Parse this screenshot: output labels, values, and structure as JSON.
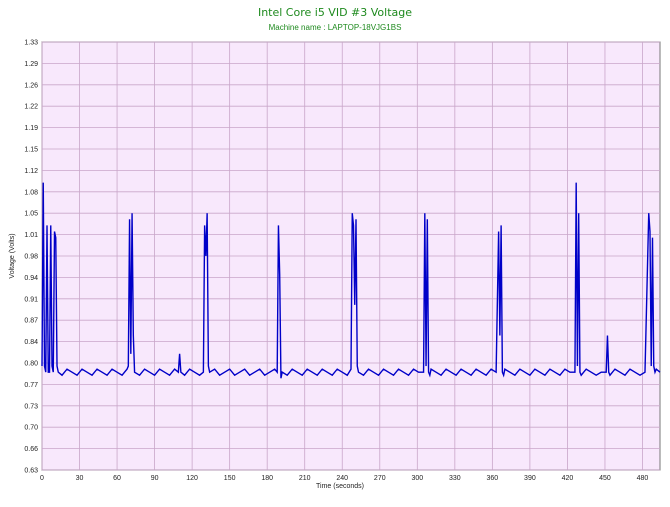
{
  "chart_data": {
    "type": "line",
    "title": "Intel Core i5 VID #3 Voltage",
    "subtitle": "Machine name : LAPTOP-18VJG1BS",
    "xlabel": "Time (seconds)",
    "ylabel": "Voltage (Volts)",
    "color": "#0000c8",
    "grid": true,
    "xlim": [
      0,
      494
    ],
    "ylim": [
      0.63,
      1.33
    ],
    "xticks": [
      0,
      30,
      60,
      90,
      120,
      150,
      180,
      210,
      240,
      270,
      300,
      330,
      360,
      390,
      420,
      450,
      480
    ],
    "yticks": [
      {
        "value": 0.63,
        "label": "0.63"
      },
      {
        "value": 0.665,
        "label": "0.66"
      },
      {
        "value": 0.7,
        "label": "0.70"
      },
      {
        "value": 0.735,
        "label": "0.73"
      },
      {
        "value": 0.77,
        "label": "0.77"
      },
      {
        "value": 0.805,
        "label": "0.80"
      },
      {
        "value": 0.84,
        "label": "0.84"
      },
      {
        "value": 0.875,
        "label": "0.87"
      },
      {
        "value": 0.91,
        "label": "0.91"
      },
      {
        "value": 0.945,
        "label": "0.94"
      },
      {
        "value": 0.98,
        "label": "0.98"
      },
      {
        "value": 1.015,
        "label": "1.01"
      },
      {
        "value": 1.05,
        "label": "1.05"
      },
      {
        "value": 1.085,
        "label": "1.08"
      },
      {
        "value": 1.12,
        "label": "1.12"
      },
      {
        "value": 1.155,
        "label": "1.15"
      },
      {
        "value": 1.19,
        "label": "1.19"
      },
      {
        "value": 1.225,
        "label": "1.22"
      },
      {
        "value": 1.26,
        "label": "1.26"
      },
      {
        "value": 1.295,
        "label": "1.29"
      },
      {
        "value": 1.33,
        "label": "1.33"
      }
    ],
    "x": [
      0,
      1,
      2,
      3,
      4,
      5,
      6,
      7,
      8,
      9,
      10,
      11,
      12,
      13,
      16,
      20,
      24,
      28,
      32,
      36,
      40,
      44,
      48,
      52,
      56,
      60,
      64,
      68,
      69,
      70,
      71,
      72,
      73,
      74,
      78,
      82,
      86,
      90,
      94,
      98,
      102,
      106,
      109,
      110,
      111,
      114,
      118,
      122,
      126,
      129,
      130,
      131,
      132,
      133,
      134,
      138,
      142,
      146,
      150,
      154,
      158,
      162,
      166,
      170,
      174,
      178,
      182,
      186,
      188,
      189,
      190,
      191,
      192,
      196,
      200,
      204,
      208,
      212,
      216,
      220,
      224,
      228,
      232,
      236,
      240,
      244,
      247,
      248,
      249,
      250,
      251,
      252,
      253,
      257,
      261,
      265,
      269,
      273,
      277,
      281,
      285,
      289,
      293,
      297,
      301,
      305,
      306,
      307,
      308,
      309,
      310,
      311,
      315,
      319,
      323,
      327,
      331,
      335,
      339,
      343,
      347,
      351,
      355,
      359,
      363,
      365,
      366,
      367,
      368,
      369,
      370,
      374,
      378,
      382,
      386,
      390,
      394,
      398,
      402,
      406,
      410,
      414,
      418,
      422,
      426,
      427,
      428,
      429,
      430,
      431,
      435,
      439,
      443,
      447,
      451,
      452,
      453,
      454,
      458,
      462,
      466,
      470,
      474,
      478,
      482,
      485,
      486,
      487,
      488,
      489,
      490,
      491,
      494
    ],
    "values": [
      0.8,
      1.1,
      0.8,
      0.79,
      1.03,
      0.79,
      0.79,
      1.03,
      0.8,
      0.79,
      1.02,
      1.01,
      0.8,
      0.79,
      0.785,
      0.795,
      0.79,
      0.785,
      0.795,
      0.79,
      0.785,
      0.795,
      0.79,
      0.785,
      0.795,
      0.79,
      0.785,
      0.795,
      0.8,
      1.04,
      0.82,
      1.05,
      0.85,
      0.79,
      0.785,
      0.795,
      0.79,
      0.785,
      0.795,
      0.79,
      0.785,
      0.795,
      0.79,
      0.82,
      0.79,
      0.785,
      0.795,
      0.79,
      0.785,
      0.79,
      1.03,
      0.98,
      1.05,
      0.8,
      0.79,
      0.795,
      0.785,
      0.79,
      0.795,
      0.785,
      0.79,
      0.795,
      0.785,
      0.79,
      0.795,
      0.785,
      0.79,
      0.795,
      0.79,
      1.03,
      0.95,
      0.78,
      0.79,
      0.785,
      0.795,
      0.79,
      0.785,
      0.795,
      0.79,
      0.785,
      0.795,
      0.79,
      0.785,
      0.795,
      0.79,
      0.785,
      0.795,
      1.05,
      1.03,
      0.9,
      1.04,
      0.8,
      0.79,
      0.785,
      0.795,
      0.79,
      0.785,
      0.795,
      0.79,
      0.785,
      0.795,
      0.79,
      0.785,
      0.795,
      0.79,
      0.79,
      1.05,
      0.8,
      1.04,
      0.79,
      0.785,
      0.795,
      0.79,
      0.785,
      0.795,
      0.79,
      0.785,
      0.795,
      0.79,
      0.785,
      0.795,
      0.79,
      0.785,
      0.795,
      0.79,
      1.02,
      0.85,
      1.03,
      0.79,
      0.785,
      0.795,
      0.79,
      0.785,
      0.795,
      0.79,
      0.785,
      0.795,
      0.79,
      0.785,
      0.795,
      0.79,
      0.785,
      0.795,
      0.79,
      0.79,
      1.1,
      0.8,
      1.05,
      0.79,
      0.785,
      0.795,
      0.79,
      0.785,
      0.79,
      0.79,
      0.85,
      0.79,
      0.785,
      0.795,
      0.79,
      0.785,
      0.795,
      0.79,
      0.785,
      0.79,
      1.05,
      1.02,
      0.8,
      1.01,
      0.8,
      0.79,
      0.795,
      0.79
    ]
  }
}
